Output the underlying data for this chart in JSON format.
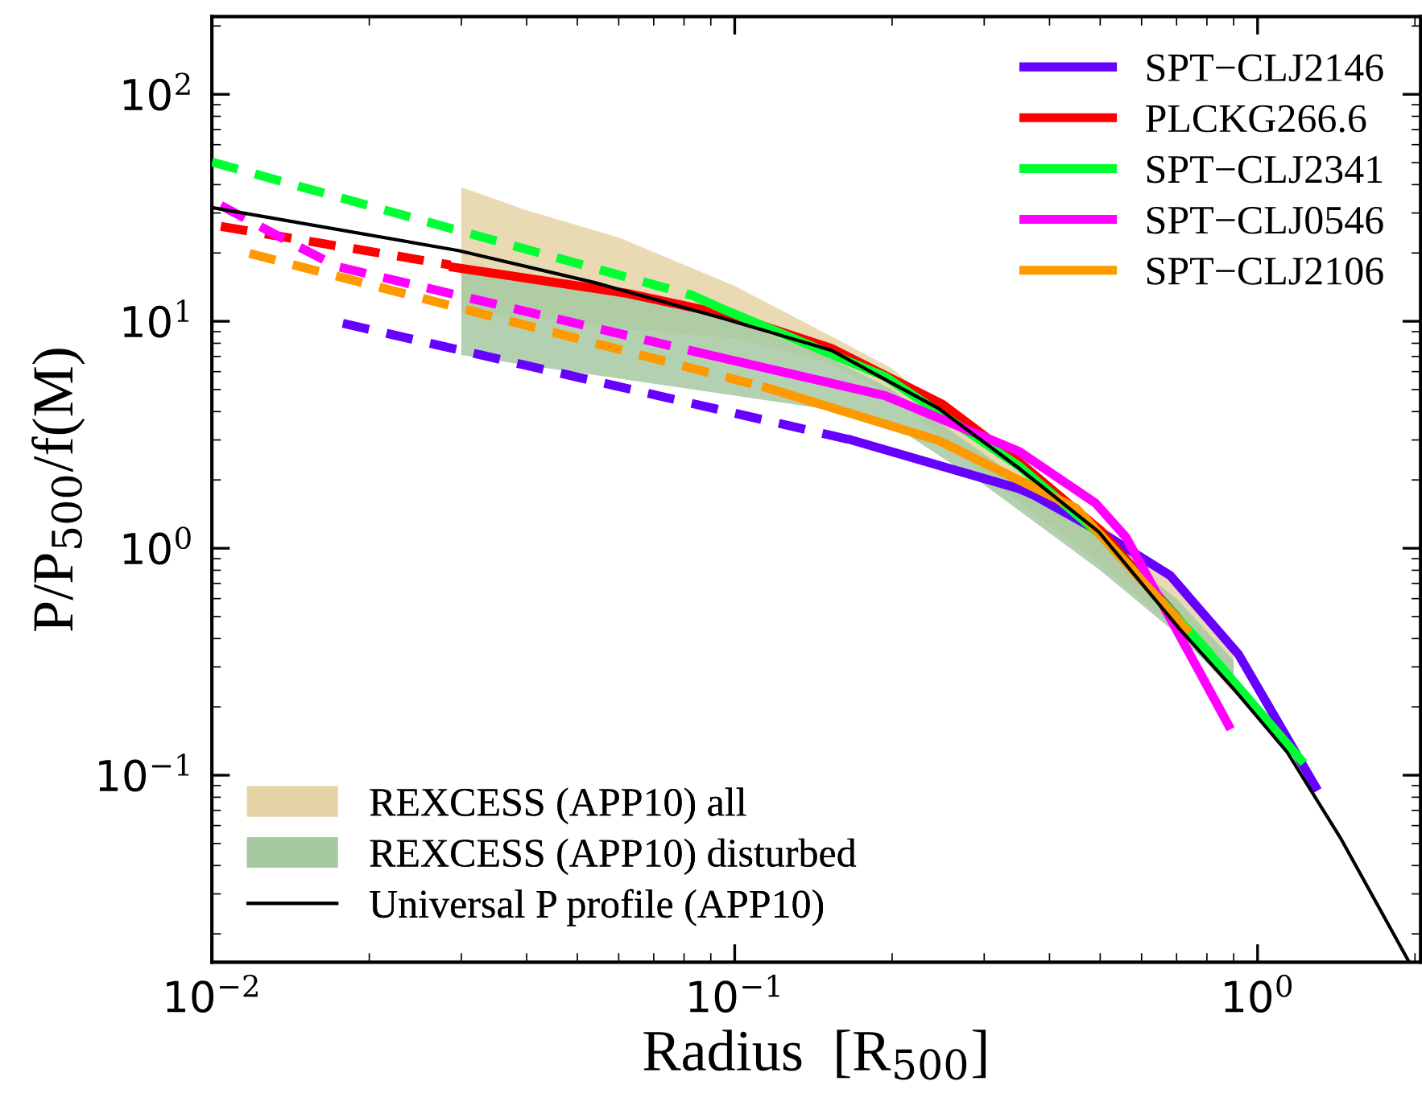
{
  "chart_data": {
    "type": "line",
    "xlabel": "Radius  [R$_{500}$]",
    "ylabel": "P/P$_{500}$/f(M)",
    "log": "xy",
    "xlim": [
      0.01,
      2.05
    ],
    "ylim": [
      0.015,
      220
    ],
    "xticks": [
      {
        "value": 0.01,
        "label": "10$^{−2}$"
      },
      {
        "value": 0.1,
        "label": "10$^{−1}$"
      },
      {
        "value": 1,
        "label": "10$^{0}$"
      }
    ],
    "yticks": [
      {
        "value": 0.1,
        "label": "10$^{−1}$"
      },
      {
        "value": 1,
        "label": "10$^{0}$"
      },
      {
        "value": 10,
        "label": "10$^{1}$"
      },
      {
        "value": 100,
        "label": "10$^{2}$"
      }
    ],
    "legend": [
      "top right",
      "bottom left"
    ],
    "series": [
      {
        "name": "SPT−CLJ2146",
        "color": "#6600ff",
        "line_style": "solid",
        "x": [
          0.168,
          0.35,
          0.374,
          0.5,
          0.68,
          0.92,
          1.29
        ],
        "values": [
          2.99,
          1.83,
          1.71,
          1.18,
          0.76,
          0.34,
          0.089
        ]
      },
      {
        "name": "PLCKG266.6",
        "color": "#ff0000",
        "line_style": "solid",
        "x": [
          0.029,
          0.062,
          0.1,
          0.153,
          0.25,
          0.35,
          0.5,
          0.7
        ],
        "values": [
          17.3,
          13.3,
          10.5,
          7.6,
          4.3,
          2.4,
          1.2,
          0.5
        ]
      },
      {
        "name": "SPT−CLJ2341",
        "color": "#00ff33",
        "line_style": "solid",
        "x": [
          0.083,
          0.095,
          0.194,
          0.35,
          0.5,
          0.78,
          1.21
        ],
        "values": [
          13,
          11.3,
          5.7,
          2.3,
          1.15,
          0.38,
          0.117
        ]
      },
      {
        "name": "SPT−CLJ0546",
        "color": "#ff00ff",
        "line_style": "solid",
        "x": [
          0.085,
          0.194,
          0.35,
          0.49,
          0.56,
          0.88
        ],
        "values": [
          7.3,
          4.7,
          2.67,
          1.58,
          1.12,
          0.166
        ]
      },
      {
        "name": "SPT−CLJ2106",
        "color": "#ff9900",
        "line_style": "solid",
        "x": [
          0.115,
          0.245,
          0.45,
          0.73
        ],
        "values": [
          5.1,
          2.99,
          1.5,
          0.44
        ]
      },
      {
        "color": "#6600ff",
        "line_style": "dashed",
        "x": [
          0.0178,
          0.168
        ],
        "values": [
          9.8,
          2.99
        ]
      },
      {
        "color": "#ff0000",
        "line_style": "dashed",
        "x": [
          0.0104,
          0.0286
        ],
        "values": [
          26.2,
          17.7
        ]
      },
      {
        "color": "#00ff33",
        "line_style": "dashed",
        "x": [
          0.01,
          0.083
        ],
        "values": [
          50.3,
          13
        ]
      },
      {
        "color": "#ff00ff",
        "line_style": "dashed",
        "x": [
          0.0104,
          0.0141,
          0.0174,
          0.085
        ],
        "values": [
          32.4,
          22.3,
          17.4,
          7.3
        ]
      },
      {
        "color": "#ff9900",
        "line_style": "dashed",
        "x": [
          0.0118,
          0.115
        ],
        "values": [
          19.9,
          5.1
        ]
      },
      {
        "name": "REXCESS (APP10) all",
        "type": "area",
        "color": "#e6d3a6",
        "x": [
          0.03,
          0.04,
          0.06,
          0.1,
          0.15,
          0.2,
          0.3,
          0.5,
          0.7,
          0.9
        ],
        "values": [
          null,
          null,
          null,
          null,
          null,
          null,
          null,
          null,
          null,
          null
        ],
        "lower": [
          11.0,
          10.5,
          9.3,
          8.4,
          6.6,
          4.7,
          2.1,
          0.85,
          0.44,
          0.23
        ],
        "upper": [
          39,
          30.8,
          23.4,
          14.3,
          8.8,
          6.2,
          2.8,
          1.28,
          0.72,
          0.35
        ]
      },
      {
        "name": "REXCESS (APP10) disturbed",
        "type": "area",
        "color": "#a6c9a2",
        "x": [
          0.03,
          0.04,
          0.06,
          0.1,
          0.15,
          0.2,
          0.3,
          0.5,
          0.7,
          0.9
        ],
        "values": [
          null,
          null,
          null,
          null,
          null,
          null,
          null,
          null,
          null,
          null
        ],
        "lower": [
          7.1,
          6.4,
          5.6,
          4.7,
          4.1,
          3.5,
          1.9,
          0.8,
          0.42,
          0.24
        ],
        "upper": [
          17,
          16,
          13.5,
          10,
          7.0,
          5.0,
          2.6,
          1.1,
          0.6,
          0.32
        ]
      },
      {
        "name": "Universal P profile (APP10)",
        "color": "#000000",
        "line_style": "solid",
        "x": [
          0.01,
          0.0296,
          0.054,
          0.095,
          0.153,
          0.245,
          0.349,
          0.497,
          0.71,
          0.9,
          1.14,
          1.44,
          1.95
        ],
        "values": [
          31.7,
          20.5,
          14.8,
          10.3,
          7.45,
          4.14,
          2.26,
          1.18,
          0.44,
          0.24,
          0.126,
          0.053,
          0.015
        ]
      }
    ]
  }
}
